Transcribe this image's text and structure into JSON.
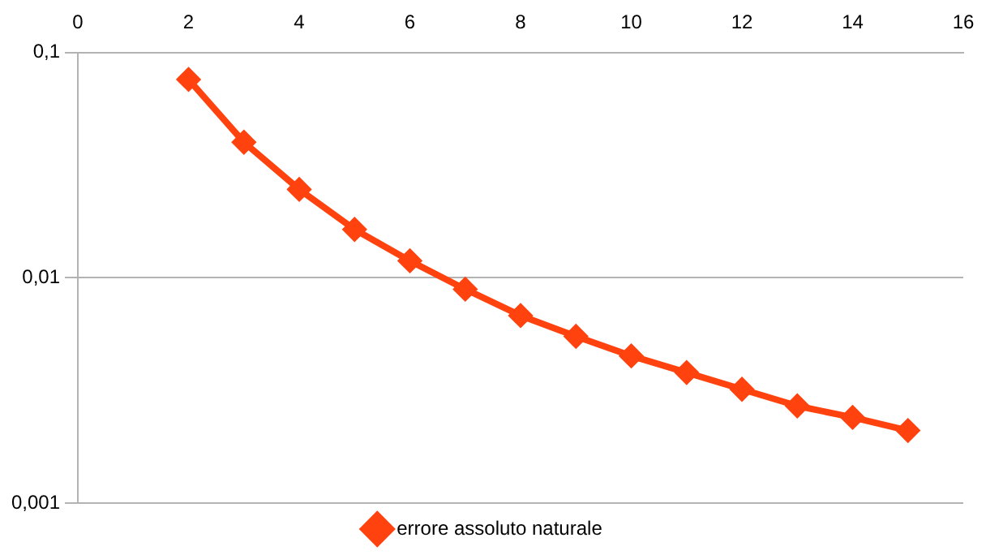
{
  "chart_data": {
    "type": "line",
    "x": [
      2,
      3,
      4,
      5,
      6,
      7,
      8,
      9,
      10,
      11,
      12,
      13,
      14,
      15
    ],
    "series": [
      {
        "name": "errore assoluto naturale",
        "color": "#ff420e",
        "values": [
          0.076,
          0.04,
          0.0247,
          0.0164,
          0.0119,
          0.0089,
          0.0068,
          0.0055,
          0.0045,
          0.0038,
          0.0032,
          0.0027,
          0.0024,
          0.0021
        ]
      }
    ],
    "xlim": [
      0,
      16
    ],
    "xticks": [
      0,
      2,
      4,
      6,
      8,
      10,
      12,
      14,
      16
    ],
    "ylim": [
      0.001,
      0.1
    ],
    "yticks": [
      {
        "value": 0.001,
        "label": "0,001"
      },
      {
        "value": 0.01,
        "label": "0,01"
      },
      {
        "value": 0.1,
        "label": "0,1"
      }
    ],
    "log": "y",
    "grid": "y",
    "legend": "bottom",
    "marker": "diamond",
    "line_style": "solid"
  }
}
